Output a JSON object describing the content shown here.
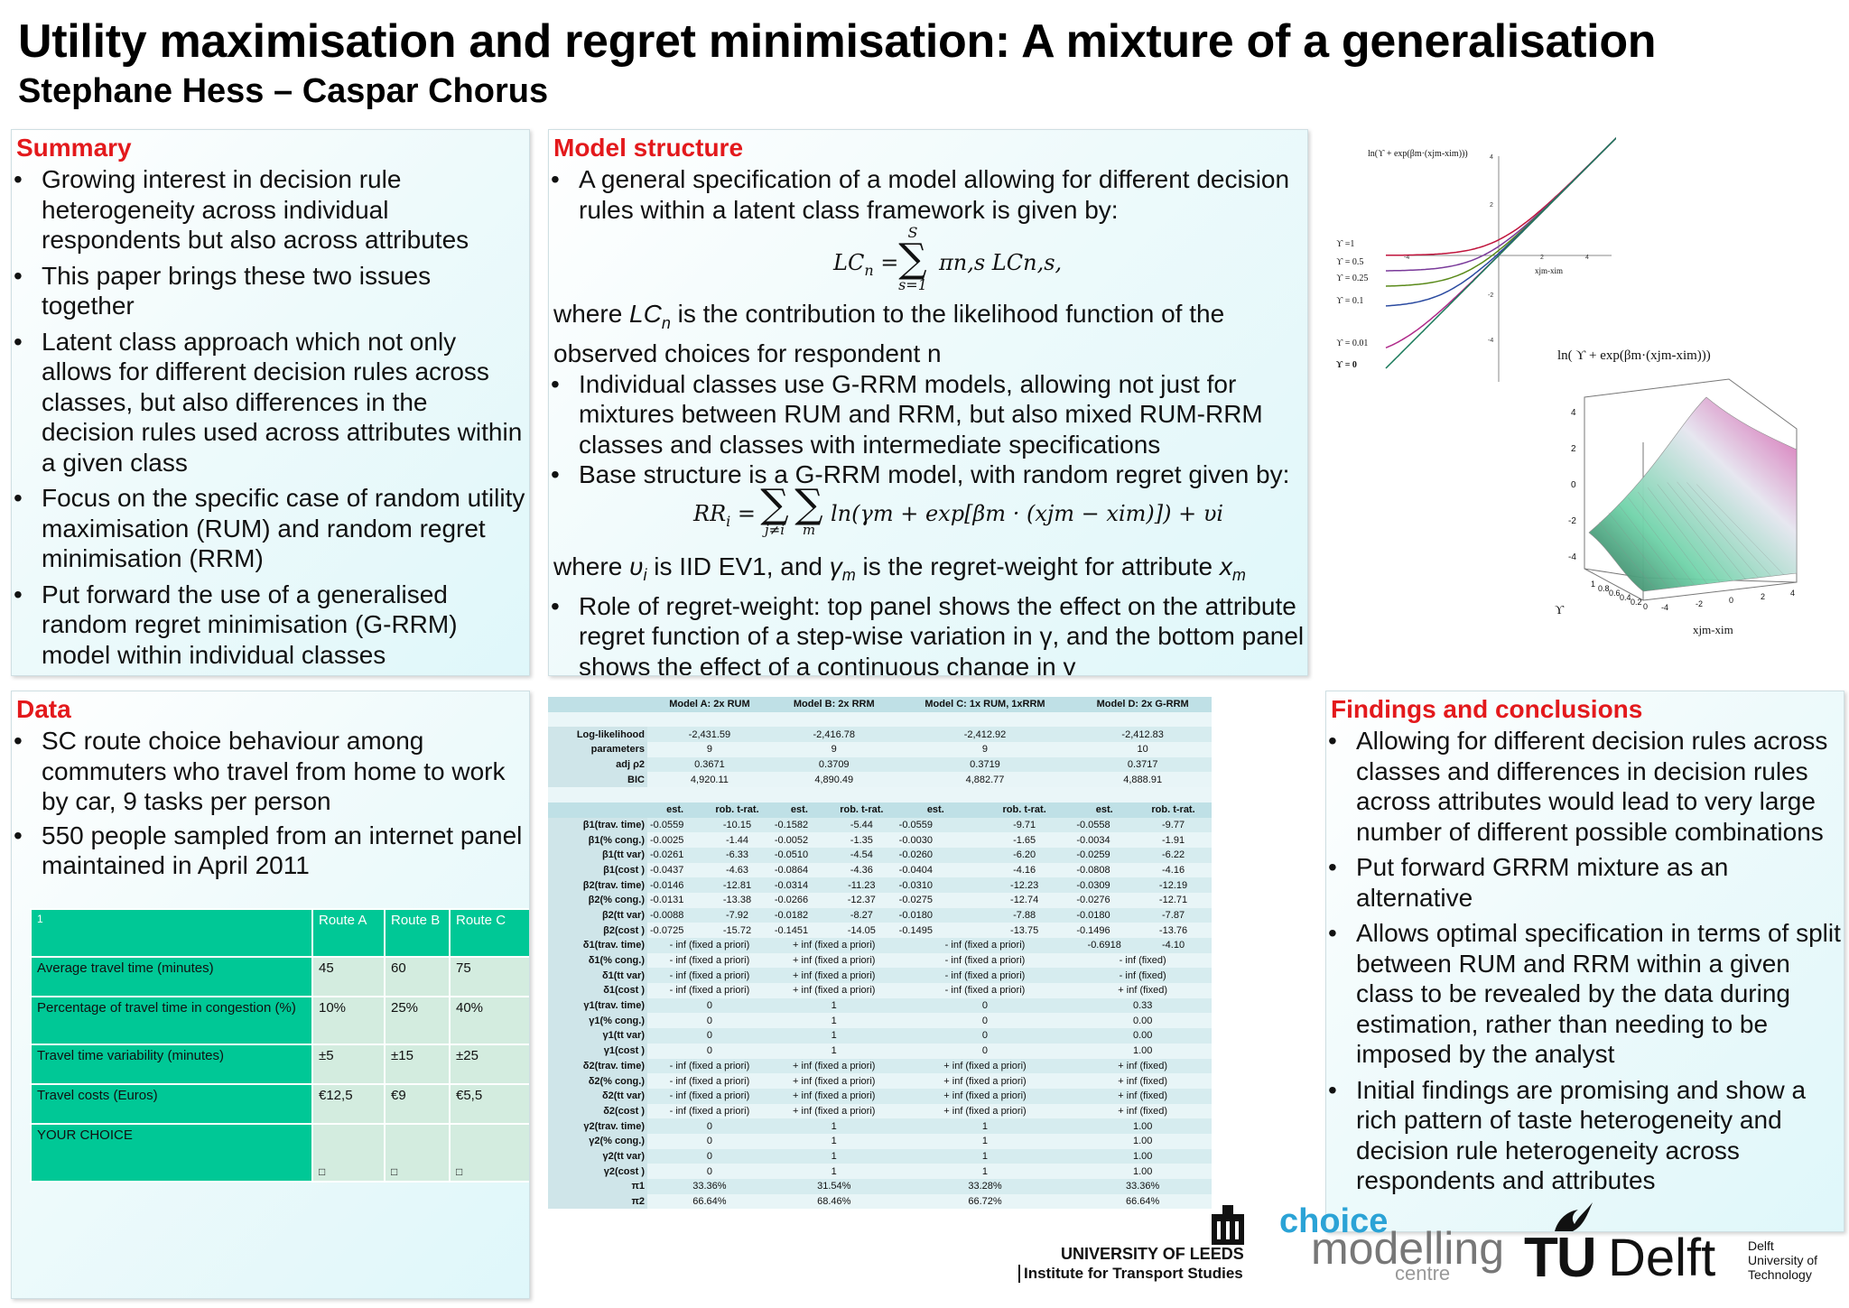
{
  "header": {
    "title": "Utility maximisation and regret minimisation: A mixture of a generalisation",
    "authors": "Stephane Hess – Caspar Chorus"
  },
  "summary": {
    "heading": "Summary",
    "bullets": [
      "Growing interest in decision rule heterogeneity across individual respondents but also across attributes",
      "This paper brings these two issues together",
      "Latent class approach which not only allows for different decision rules across classes, but also differences in the decision rules used across attributes within a given class",
      "Focus on the specific case of random utility maximisation (RUM) and random regret minimisation (RRM)",
      "Put forward the use of a generalised random regret minimisation (G-RRM) model within individual classes"
    ]
  },
  "model": {
    "heading": "Model structure",
    "bullet1": "A general specification of a model allowing for different decision rules within a latent class framework is given by:",
    "eq1_lhs": "LC",
    "eq1_sub_n": "n",
    "eq1_top": "S",
    "eq1_bottom": "s=1",
    "eq1_rhs": "πn,s LCn,s,",
    "text1_a": "where ",
    "text1_lc": "LC",
    "text1_n": "n",
    "text1_b": " is the contribution to the likelihood function of the observed choices for respondent n",
    "bullet2": "Individual classes use G-RRM models, allowing not just for mixtures between RUM and RRM, but also mixed RUM-RRM classes and classes with intermediate specifications",
    "bullet3": "Base structure is a G-RRM model, with random regret given by:",
    "eq2_lhs": "RR",
    "eq2_sub": "i",
    "eq2_sum1": "j≠i",
    "eq2_sum2": "m",
    "eq2_body": "ln(γm + exp[βm · (xjm − xim)]) + υi",
    "text2_a": "where ",
    "text2_v": "υ",
    "text2_vi": "i",
    "text2_b": " is IID EV1, and ",
    "text2_g": "γ",
    "text2_gm": "m",
    "text2_c": " is the regret-weight for attribute ",
    "text2_x": "x",
    "text2_xm": "m",
    "bullet4": "Role of regret-weight: top panel shows the effect on the attribute regret function of a step-wise variation in γ, and the bottom panel shows the effect of a continuous change in γ"
  },
  "plots": {
    "top_ylabel": "ln(ϒ + exp(βm·(xjm-xim)))",
    "top_xlabel": "xjm-xim",
    "top_ticks_x": [
      "-4",
      "-2",
      "2",
      "4"
    ],
    "top_ticks_y": [
      "4",
      "2",
      "-2",
      "-4"
    ],
    "curves": [
      {
        "label": "ϒ =1",
        "color": "#c0143c"
      },
      {
        "label": "ϒ = 0.5",
        "color": "#7a3a9a"
      },
      {
        "label": "ϒ = 0.25",
        "color": "#5a8a1a"
      },
      {
        "label": "ϒ = 0.1",
        "color": "#2a4aa0"
      },
      {
        "label": "ϒ = 0.01",
        "color": "#b02a8a"
      },
      {
        "label": "ϒ = 0",
        "color": "#1a7a5a"
      }
    ],
    "surf_title": "ln( ϒ + exp(βm·(xjm-xim)))",
    "surf_z_ticks": [
      "4",
      "2",
      "0",
      "-2",
      "-4"
    ],
    "surf_g_ticks": [
      "1",
      "0.8",
      "0.6",
      "0.4",
      "0.2",
      "0"
    ],
    "surf_x_ticks": [
      "-4",
      "-2",
      "0",
      "2",
      "4"
    ],
    "surf_glabel": "ϒ",
    "surf_xlabel": "xjm-xim"
  },
  "data": {
    "heading": "Data",
    "bullets": [
      "SC route choice behaviour among commuters who travel from home to work by car, 9 tasks per person",
      "550 people sampled from an internet panel maintained in April 2011"
    ],
    "route_table": {
      "corner": "1",
      "headers": [
        "Route A",
        "Route B",
        "Route C"
      ],
      "rows": [
        {
          "label": "Average travel time (minutes)",
          "values": [
            "45",
            "60",
            "75"
          ]
        },
        {
          "label": "Percentage of travel time in congestion (%)",
          "values": [
            "10%",
            "25%",
            "40%"
          ]
        },
        {
          "label": "Travel time variability (minutes)",
          "values": [
            "±5",
            "±15",
            "±25"
          ]
        },
        {
          "label": "Travel costs (Euros)",
          "values": [
            "€12,5",
            "€9",
            "€5,5"
          ]
        }
      ],
      "choice_label": "YOUR CHOICE",
      "checkbox": "□"
    }
  },
  "estimates": {
    "models": [
      "Model A: 2x RUM",
      "Model B: 2x RRM",
      "Model C: 1x RUM, 1xRRM",
      "Model D: 2x G-RRM"
    ],
    "fit_rows": [
      {
        "label": "Log-likelihood",
        "values": [
          "-2,431.59",
          "-2,416.78",
          "-2,412.92",
          "-2,412.83"
        ]
      },
      {
        "label": "parameters",
        "values": [
          "9",
          "9",
          "9",
          "10"
        ]
      },
      {
        "label": "adj ρ2",
        "values": [
          "0.3671",
          "0.3709",
          "0.3719",
          "0.3717"
        ]
      },
      {
        "label": "BIC",
        "values": [
          "4,920.11",
          "4,890.49",
          "4,882.77",
          "4,888.91"
        ]
      }
    ],
    "col_est": "est.",
    "col_t": "rob. t-rat.",
    "rows": [
      {
        "label": "β1(trav. time)",
        "v": [
          "-0.0559",
          "-10.15",
          "-0.1582",
          "-5.44",
          "-0.0559",
          "-9.71",
          "-0.0558",
          "-9.77"
        ]
      },
      {
        "label": "β1(% cong.)",
        "v": [
          "-0.0025",
          "-1.44",
          "-0.0052",
          "-1.35",
          "-0.0030",
          "-1.65",
          "-0.0034",
          "-1.91"
        ]
      },
      {
        "label": "β1(tt var)",
        "v": [
          "-0.0261",
          "-6.33",
          "-0.0510",
          "-4.54",
          "-0.0260",
          "-6.20",
          "-0.0259",
          "-6.22"
        ]
      },
      {
        "label": "β1(cost )",
        "v": [
          "-0.0437",
          "-4.63",
          "-0.0864",
          "-4.36",
          "-0.0404",
          "-4.16",
          "-0.0808",
          "-4.16"
        ]
      },
      {
        "label": "β2(trav. time)",
        "v": [
          "-0.0146",
          "-12.81",
          "-0.0314",
          "-11.23",
          "-0.0310",
          "-12.23",
          "-0.0309",
          "-12.19"
        ]
      },
      {
        "label": "β2(% cong.)",
        "v": [
          "-0.0131",
          "-13.38",
          "-0.0266",
          "-12.37",
          "-0.0275",
          "-12.74",
          "-0.0276",
          "-12.71"
        ]
      },
      {
        "label": "β2(tt var)",
        "v": [
          "-0.0088",
          "-7.92",
          "-0.0182",
          "-8.27",
          "-0.0180",
          "-7.88",
          "-0.0180",
          "-7.87"
        ]
      },
      {
        "label": "β2(cost )",
        "v": [
          "-0.0725",
          "-15.72",
          "-0.1451",
          "-14.05",
          "-0.1495",
          "-13.75",
          "-0.1496",
          "-13.76"
        ]
      }
    ],
    "span_rows": [
      {
        "label": "δ1(trav. time)",
        "v": [
          "- inf (fixed a priori)",
          "+ inf (fixed a priori)",
          "- inf (fixed a priori)"
        ],
        "d": [
          "-0.6918",
          "-4.10"
        ]
      },
      {
        "label": "δ1(% cong.)",
        "v": [
          "- inf (fixed a priori)",
          "+ inf (fixed a priori)",
          "- inf (fixed a priori)",
          "- inf (fixed)"
        ]
      },
      {
        "label": "δ1(tt var)",
        "v": [
          "- inf (fixed a priori)",
          "+ inf (fixed a priori)",
          "- inf (fixed a priori)",
          "- inf (fixed)"
        ]
      },
      {
        "label": "δ1(cost )",
        "v": [
          "- inf (fixed a priori)",
          "+ inf (fixed a priori)",
          "- inf (fixed a priori)",
          "+ inf (fixed)"
        ]
      },
      {
        "label": "γ1(trav. time)",
        "v": [
          "0",
          "1",
          "0",
          "0.33"
        ]
      },
      {
        "label": "γ1(% cong.)",
        "v": [
          "0",
          "1",
          "0",
          "0.00"
        ]
      },
      {
        "label": "γ1(tt var)",
        "v": [
          "0",
          "1",
          "0",
          "0.00"
        ]
      },
      {
        "label": "γ1(cost )",
        "v": [
          "0",
          "1",
          "0",
          "1.00"
        ]
      },
      {
        "label": "δ2(trav. time)",
        "v": [
          "- inf (fixed a priori)",
          "+ inf (fixed a priori)",
          "+ inf (fixed a priori)",
          "+ inf (fixed)"
        ]
      },
      {
        "label": "δ2(% cong.)",
        "v": [
          "- inf (fixed a priori)",
          "+ inf (fixed a priori)",
          "+ inf (fixed a priori)",
          "+ inf (fixed)"
        ]
      },
      {
        "label": "δ2(tt var)",
        "v": [
          "- inf (fixed a priori)",
          "+ inf (fixed a priori)",
          "+ inf (fixed a priori)",
          "+ inf (fixed)"
        ]
      },
      {
        "label": "δ2(cost )",
        "v": [
          "- inf (fixed a priori)",
          "+ inf (fixed a priori)",
          "+ inf (fixed a priori)",
          "+ inf (fixed)"
        ]
      },
      {
        "label": "γ2(trav. time)",
        "v": [
          "0",
          "1",
          "1",
          "1.00"
        ]
      },
      {
        "label": "γ2(% cong.)",
        "v": [
          "0",
          "1",
          "1",
          "1.00"
        ]
      },
      {
        "label": "γ2(tt var)",
        "v": [
          "0",
          "1",
          "1",
          "1.00"
        ]
      },
      {
        "label": "γ2(cost )",
        "v": [
          "0",
          "1",
          "1",
          "1.00"
        ]
      },
      {
        "label": "π1",
        "v": [
          "33.36%",
          "31.54%",
          "33.28%",
          "33.36%"
        ]
      },
      {
        "label": "π2",
        "v": [
          "66.64%",
          "68.46%",
          "66.72%",
          "66.64%"
        ]
      }
    ]
  },
  "findings": {
    "heading": "Findings and conclusions",
    "bullets": [
      "Allowing for different decision rules across classes and differences in decision rules across attributes would lead to very large number of different possible combinations",
      "Put forward GRRM mixture as an alternative",
      "Allows optimal specification in terms of split between RUM and RRM within a given class to be revealed by the data during estimation, rather than needing to be imposed by the analyst",
      "Initial findings are promising and show a rich pattern of taste heterogeneity and decision rule heterogeneity across respondents and attributes"
    ]
  },
  "logos": {
    "leeds_name": "UNIVERSITY OF LEEDS",
    "leeds_inst": "Institute for Transport Studies",
    "cmc_choice": "choice",
    "cmc_modelling": "modelling",
    "cmc_centre": "centre",
    "tud_tu": "TU",
    "tud_delft": "Delft",
    "tud_side": [
      "Delft",
      "University of",
      "Technology"
    ],
    "colors": {
      "accent_red": "#e3191c",
      "tud_blue": "#00a6d6",
      "cmc_blue": "#2ba3d6",
      "table_green": "#00c896"
    }
  }
}
